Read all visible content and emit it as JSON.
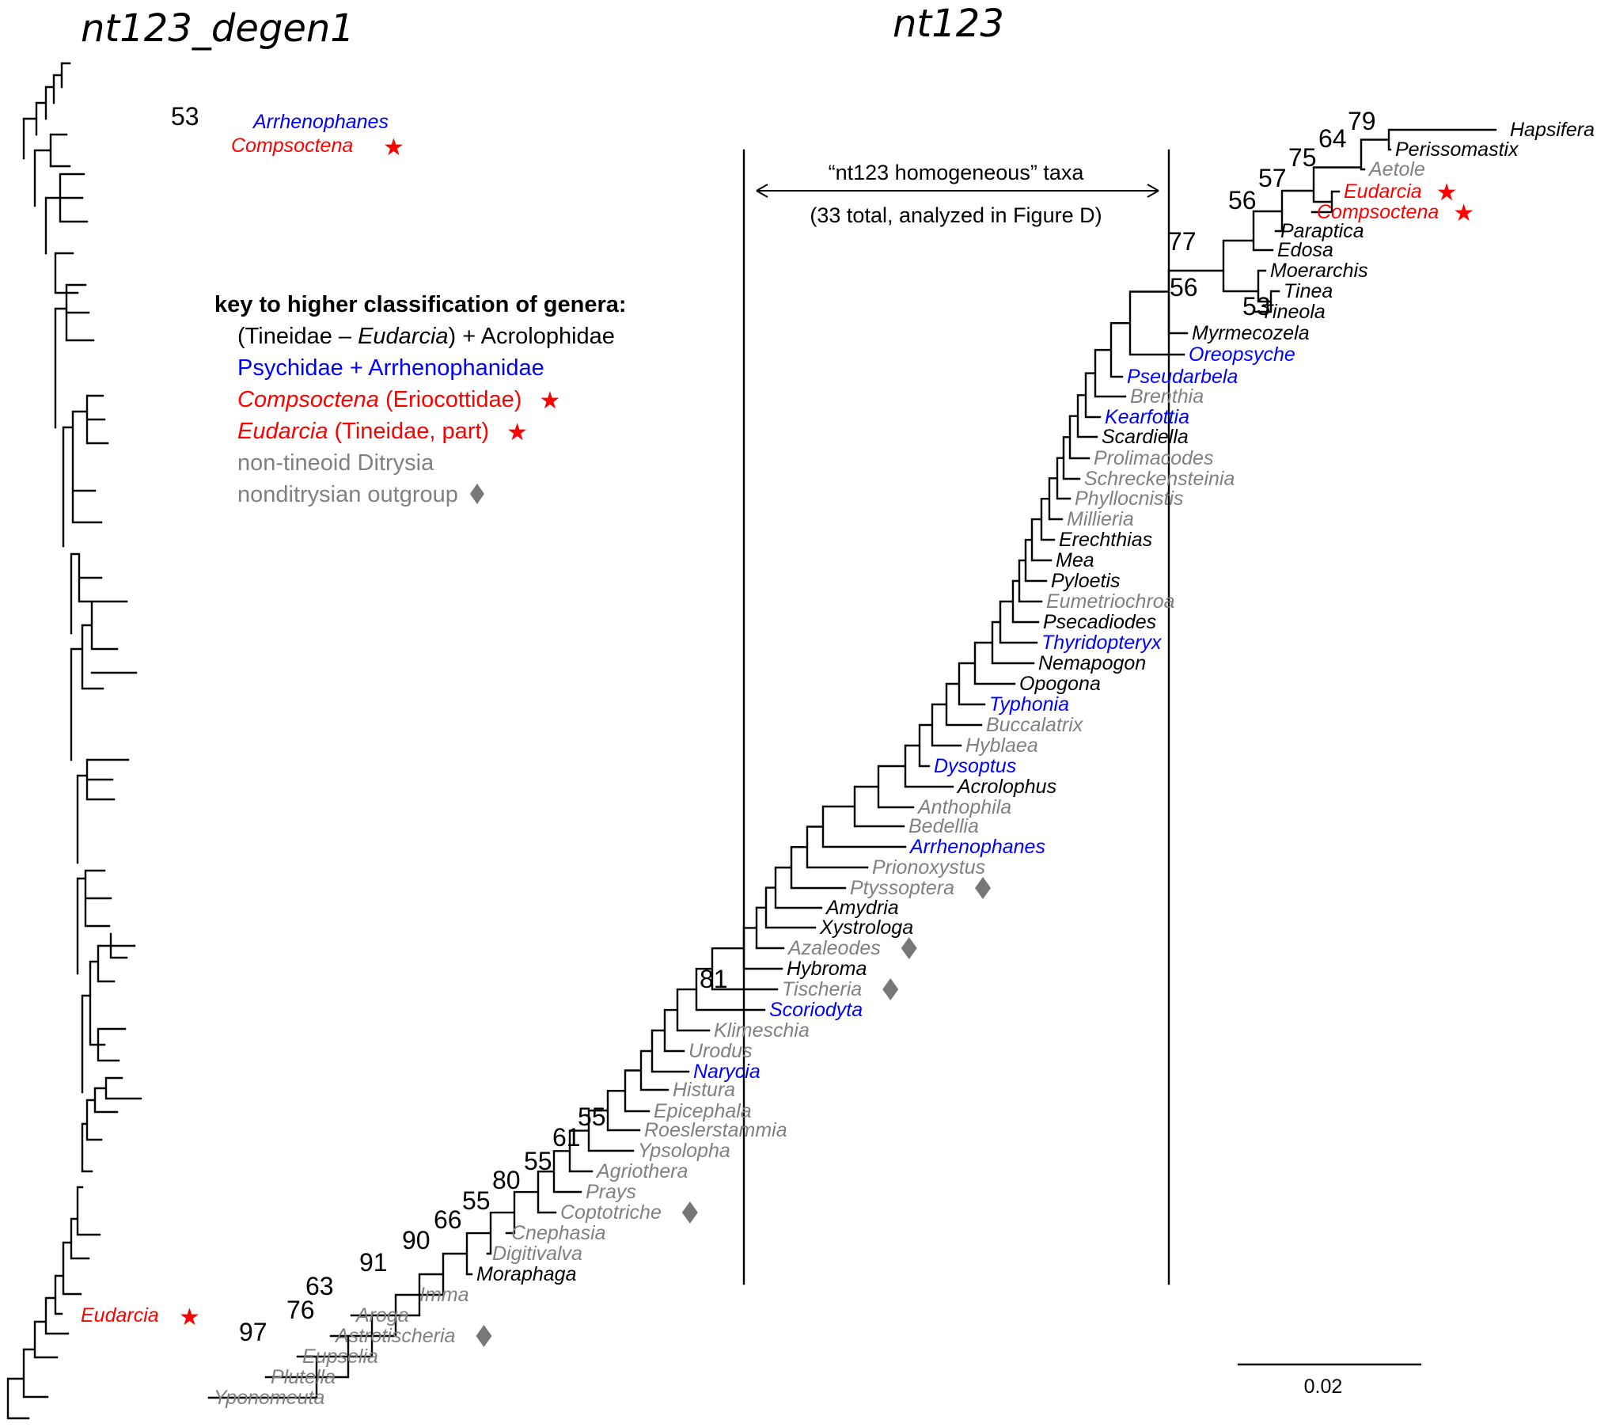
{
  "titles": {
    "left": "nt123_degen1",
    "right": "nt123"
  },
  "colors": {
    "black": "#000000",
    "blue": "#0000ff",
    "red": "#ff0000",
    "gray": "#808080",
    "marker_gray": "#777777"
  },
  "key": {
    "title": "key to higher classification of genera:",
    "lines": [
      {
        "parts": [
          {
            "text": "(Tineidae – ",
            "italic": false
          },
          {
            "text": "Eudarcia",
            "italic": true
          },
          {
            "text": ") + Acrolophidae",
            "italic": false
          }
        ],
        "color": "black",
        "marker": ""
      },
      {
        "parts": [
          {
            "text": "Psychidae + Arrhenophanidae",
            "italic": false
          }
        ],
        "color": "blue",
        "marker": ""
      },
      {
        "parts": [
          {
            "text": "Compsoctena",
            "italic": true
          },
          {
            "text": " (Eriocottidae)",
            "italic": false
          }
        ],
        "color": "red",
        "marker": "star"
      },
      {
        "parts": [
          {
            "text": "Eudarcia",
            "italic": true
          },
          {
            "text": " (Tineidae, part)",
            "italic": false
          }
        ],
        "color": "red",
        "marker": "star"
      },
      {
        "parts": [
          {
            "text": "non-tineoid Ditrysia",
            "italic": false
          }
        ],
        "color": "gray",
        "marker": ""
      },
      {
        "parts": [
          {
            "text": "nonditrysian outgroup",
            "italic": false
          }
        ],
        "color": "gray",
        "marker": "diamond"
      }
    ]
  },
  "homogeneous_note": {
    "line1": "“nt123 homogeneous” taxa",
    "line2": "(33 total, analyzed in Figure D)"
  },
  "scale_bar": {
    "label": "0.02"
  },
  "left_tree_labels": [
    {
      "name": "Arrhenophanes",
      "color": "blue",
      "marker": ""
    },
    {
      "name": "Compsoctena",
      "color": "red",
      "marker": "star"
    },
    {
      "name": "Eudarcia",
      "color": "red",
      "marker": "star"
    }
  ],
  "left_tree_bootstrap": [
    "53"
  ],
  "right_taxa": [
    {
      "name": "Hapsifera",
      "color": "black",
      "marker": ""
    },
    {
      "name": "Perissomastix",
      "color": "black",
      "marker": ""
    },
    {
      "name": "Aetole",
      "color": "gray",
      "marker": ""
    },
    {
      "name": "Eudarcia",
      "color": "red",
      "marker": "star"
    },
    {
      "name": "Compsoctena",
      "color": "red",
      "marker": "star"
    },
    {
      "name": "Paraptica",
      "color": "black",
      "marker": ""
    },
    {
      "name": "Edosa",
      "color": "black",
      "marker": ""
    },
    {
      "name": "Moerarchis",
      "color": "black",
      "marker": ""
    },
    {
      "name": "Tinea",
      "color": "black",
      "marker": ""
    },
    {
      "name": "Tineola",
      "color": "black",
      "marker": ""
    },
    {
      "name": "Myrmecozela",
      "color": "black",
      "marker": ""
    },
    {
      "name": "Oreopsyche",
      "color": "blue",
      "marker": ""
    },
    {
      "name": "Pseudarbela",
      "color": "blue",
      "marker": ""
    },
    {
      "name": "Brenthia",
      "color": "gray",
      "marker": ""
    },
    {
      "name": "Kearfottia",
      "color": "blue",
      "marker": ""
    },
    {
      "name": "Scardiella",
      "color": "black",
      "marker": ""
    },
    {
      "name": "Prolimacodes",
      "color": "gray",
      "marker": ""
    },
    {
      "name": "Schreckensteinia",
      "color": "gray",
      "marker": ""
    },
    {
      "name": "Phyllocnistis",
      "color": "gray",
      "marker": ""
    },
    {
      "name": "Millieria",
      "color": "gray",
      "marker": ""
    },
    {
      "name": "Erechthias",
      "color": "black",
      "marker": ""
    },
    {
      "name": "Mea",
      "color": "black",
      "marker": ""
    },
    {
      "name": "Pyloetis",
      "color": "black",
      "marker": ""
    },
    {
      "name": "Eumetriochroa",
      "color": "gray",
      "marker": ""
    },
    {
      "name": "Psecadiodes",
      "color": "black",
      "marker": ""
    },
    {
      "name": "Thyridopteryx",
      "color": "blue",
      "marker": ""
    },
    {
      "name": "Nemapogon",
      "color": "black",
      "marker": ""
    },
    {
      "name": "Opogona",
      "color": "black",
      "marker": ""
    },
    {
      "name": "Typhonia",
      "color": "blue",
      "marker": ""
    },
    {
      "name": "Buccalatrix",
      "color": "gray",
      "marker": ""
    },
    {
      "name": "Hyblaea",
      "color": "gray",
      "marker": ""
    },
    {
      "name": "Dysoptus",
      "color": "blue",
      "marker": ""
    },
    {
      "name": "Acrolophus",
      "color": "black",
      "marker": ""
    },
    {
      "name": "Anthophila",
      "color": "gray",
      "marker": ""
    },
    {
      "name": "Bedellia",
      "color": "gray",
      "marker": ""
    },
    {
      "name": "Arrhenophanes",
      "color": "blue",
      "marker": ""
    },
    {
      "name": "Prionoxystus",
      "color": "gray",
      "marker": ""
    },
    {
      "name": "Ptyssoptera",
      "color": "gray",
      "marker": "diamond"
    },
    {
      "name": "Amydria",
      "color": "black",
      "marker": ""
    },
    {
      "name": "Xystrologa",
      "color": "black",
      "marker": ""
    },
    {
      "name": "Azaleodes",
      "color": "gray",
      "marker": "diamond"
    },
    {
      "name": "Hybroma",
      "color": "black",
      "marker": ""
    },
    {
      "name": "Tischeria",
      "color": "gray",
      "marker": "diamond"
    },
    {
      "name": "Scoriodyta",
      "color": "blue",
      "marker": ""
    },
    {
      "name": "Klimeschia",
      "color": "gray",
      "marker": ""
    },
    {
      "name": "Urodus",
      "color": "gray",
      "marker": ""
    },
    {
      "name": "Narycia",
      "color": "blue",
      "marker": ""
    },
    {
      "name": "Histura",
      "color": "gray",
      "marker": ""
    },
    {
      "name": "Epicephala",
      "color": "gray",
      "marker": ""
    },
    {
      "name": "Roeslerstammia",
      "color": "gray",
      "marker": ""
    },
    {
      "name": "Ypsolopha",
      "color": "gray",
      "marker": ""
    },
    {
      "name": "Agriothera",
      "color": "gray",
      "marker": ""
    },
    {
      "name": "Prays",
      "color": "gray",
      "marker": ""
    },
    {
      "name": "Coptotriche",
      "color": "gray",
      "marker": "diamond"
    },
    {
      "name": "Cnephasia",
      "color": "gray",
      "marker": ""
    },
    {
      "name": "Digitivalva",
      "color": "gray",
      "marker": ""
    },
    {
      "name": "Moraphaga",
      "color": "black",
      "marker": ""
    },
    {
      "name": "Imma",
      "color": "gray",
      "marker": ""
    },
    {
      "name": "Aroga",
      "color": "gray",
      "marker": ""
    },
    {
      "name": "Astrotischeria",
      "color": "gray",
      "marker": "diamond"
    },
    {
      "name": "Eupselia",
      "color": "gray",
      "marker": ""
    },
    {
      "name": "Plutella",
      "color": "gray",
      "marker": ""
    },
    {
      "name": "Yponomeuta",
      "color": "gray",
      "marker": ""
    }
  ],
  "right_bootstrap": [
    "79",
    "64",
    "75",
    "57",
    "56",
    "77",
    "56",
    "53",
    "81",
    "55",
    "61",
    "55",
    "80",
    "55",
    "66",
    "90",
    "91",
    "63",
    "76",
    "97"
  ]
}
